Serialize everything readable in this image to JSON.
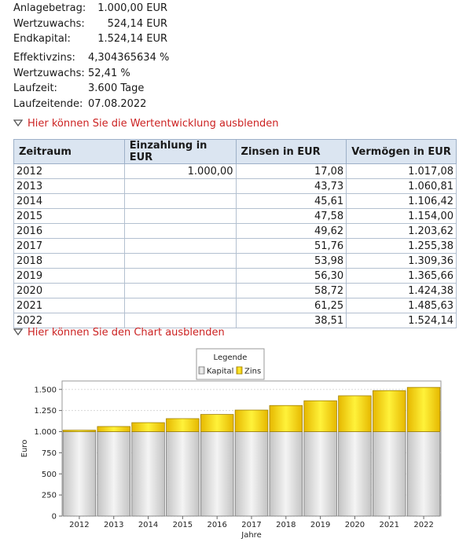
{
  "summary1": [
    {
      "label": "Anlagebetrag:",
      "value": "1.000,00 EUR"
    },
    {
      "label": "Wertzuwachs:",
      "value": "524,14 EUR"
    },
    {
      "label": "Endkapital:",
      "value": "1.524,14 EUR"
    }
  ],
  "summary2": [
    {
      "label": "Effektivzins:",
      "value": "4,304365634 %"
    },
    {
      "label": "Wertzuwachs:",
      "value": "52,41 %"
    },
    {
      "label": "Laufzeit:",
      "value": "3.600 Tage"
    },
    {
      "label": "Laufzeitende:",
      "value": "07.08.2022"
    }
  ],
  "toggle_table_label": "Hier können Sie die Wertentwicklung ausblenden",
  "toggle_chart_label": "Hier können Sie den Chart ausblenden",
  "table": {
    "headers": [
      "Zeitraum",
      "Einzahlung in EUR",
      "Zinsen in EUR",
      "Vermögen in EUR"
    ],
    "rows": [
      [
        "2012",
        "1.000,00",
        "17,08",
        "1.017,08"
      ],
      [
        "2013",
        "",
        "43,73",
        "1.060,81"
      ],
      [
        "2014",
        "",
        "45,61",
        "1.106,42"
      ],
      [
        "2015",
        "",
        "47,58",
        "1.154,00"
      ],
      [
        "2016",
        "",
        "49,62",
        "1.203,62"
      ],
      [
        "2017",
        "",
        "51,76",
        "1.255,38"
      ],
      [
        "2018",
        "",
        "53,98",
        "1.309,36"
      ],
      [
        "2019",
        "",
        "56,30",
        "1.365,66"
      ],
      [
        "2020",
        "",
        "58,72",
        "1.424,38"
      ],
      [
        "2021",
        "",
        "61,25",
        "1.485,63"
      ],
      [
        "2022",
        "",
        "38,51",
        "1.524,14"
      ]
    ]
  },
  "colors": {
    "accent_red": "#cc2222",
    "kapital": "#d9d9d9",
    "zins": "#ffd700",
    "header_bg": "#dbe5f1"
  },
  "chart_data": {
    "type": "bar",
    "stacked": true,
    "legend_title": "Legende",
    "legend_position": "top",
    "categories": [
      "2012",
      "2013",
      "2014",
      "2015",
      "2016",
      "2017",
      "2018",
      "2019",
      "2020",
      "2021",
      "2022"
    ],
    "series": [
      {
        "name": "Kapital",
        "values": [
          1000,
          1000,
          1000,
          1000,
          1000,
          1000,
          1000,
          1000,
          1000,
          1000,
          1000
        ]
      },
      {
        "name": "Zins",
        "values": [
          17.08,
          60.81,
          106.42,
          154.0,
          203.62,
          255.38,
          309.36,
          365.66,
          424.38,
          485.63,
          524.14
        ]
      }
    ],
    "xlabel": "Jahre",
    "ylabel": "Euro",
    "ylim": [
      0,
      1600
    ],
    "yticks": [
      0,
      250,
      500,
      750,
      1000,
      1250,
      1500
    ],
    "ytick_labels": [
      "0",
      "250",
      "500",
      "750",
      "1.000",
      "1.250",
      "1.500"
    ],
    "grid": true
  }
}
